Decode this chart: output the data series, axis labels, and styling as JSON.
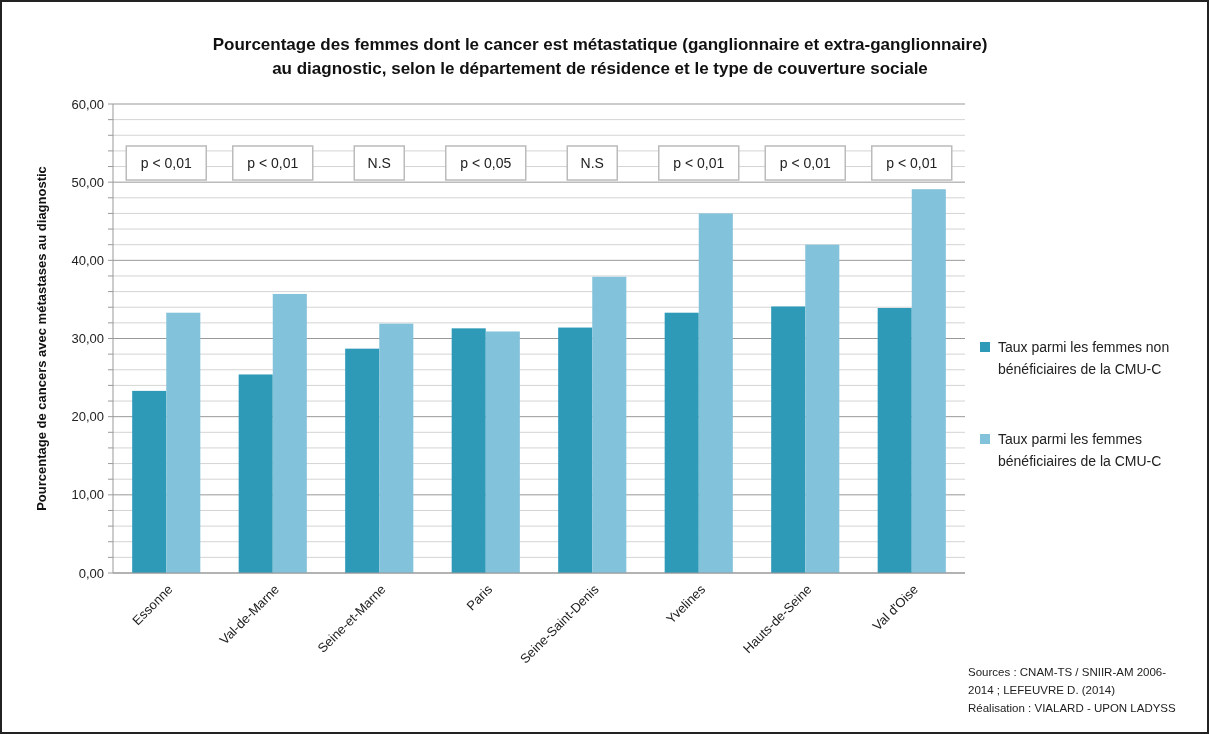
{
  "chart_data": {
    "type": "bar",
    "title": "Pourcentage des femmes dont le cancer est métastatique (ganglionnaire et extra-ganglionnaire)\nau diagnostic, selon le département de résidence et le type de couverture sociale",
    "ylabel": "Pourcentage de cancers avec métastases au diagnostic",
    "categories": [
      "Essonne",
      "Val-de-Marne",
      "Seine-et-Marne",
      "Paris",
      "Seine-Saint-Denis",
      "Yvelines",
      "Hauts-de-Seine",
      "Val d'Oise"
    ],
    "series": [
      {
        "name": "Taux parmi les femmes non bénéficiaires de la CMU-C",
        "color": "#2e9ab8",
        "values": [
          23.3,
          25.4,
          28.7,
          31.3,
          31.4,
          33.3,
          34.1,
          33.9
        ]
      },
      {
        "name": "Taux parmi les femmes bénéficiaires de la CMU-C",
        "color": "#82c2da",
        "values": [
          33.3,
          35.7,
          31.9,
          30.9,
          37.9,
          46.0,
          42.0,
          49.1
        ]
      }
    ],
    "ylim": [
      0,
      60
    ],
    "yticks": [
      {
        "value": 0,
        "label": "0,00"
      },
      {
        "value": 2,
        "label": null
      },
      {
        "value": 4,
        "label": null
      },
      {
        "value": 6,
        "label": null
      },
      {
        "value": 8,
        "label": null
      },
      {
        "value": 10,
        "label": "10,00"
      },
      {
        "value": 12,
        "label": null
      },
      {
        "value": 14,
        "label": null
      },
      {
        "value": 16,
        "label": null
      },
      {
        "value": 18,
        "label": null
      },
      {
        "value": 20,
        "label": "20,00"
      },
      {
        "value": 22,
        "label": null
      },
      {
        "value": 24,
        "label": null
      },
      {
        "value": 26,
        "label": null
      },
      {
        "value": 28,
        "label": null
      },
      {
        "value": 30,
        "label": "30,00"
      },
      {
        "value": 32,
        "label": null
      },
      {
        "value": 34,
        "label": null
      },
      {
        "value": 36,
        "label": null
      },
      {
        "value": 38,
        "label": null
      },
      {
        "value": 40,
        "label": "40,00"
      },
      {
        "value": 42,
        "label": null
      },
      {
        "value": 44,
        "label": null
      },
      {
        "value": 46,
        "label": null
      },
      {
        "value": 48,
        "label": null
      },
      {
        "value": 50,
        "label": "50,00"
      },
      {
        "value": 52,
        "label": null
      },
      {
        "value": 54,
        "label": null
      },
      {
        "value": 56,
        "label": null
      },
      {
        "value": 58,
        "label": null
      },
      {
        "value": 60,
        "label": "60,00"
      }
    ],
    "grid": true,
    "legend": "right",
    "annotations": [
      "p < 0,01",
      "p < 0,01",
      "N.S",
      "p < 0,05",
      "N.S",
      "p < 0,01",
      "p < 0,01",
      "p < 0,01",
      "Sources : CNAM-TS / SNIIR-AM 2006-2014 ; LEFEUVRE D. (2014)\nRéalisation : VIALARD - UPON LADYSS"
    ]
  }
}
